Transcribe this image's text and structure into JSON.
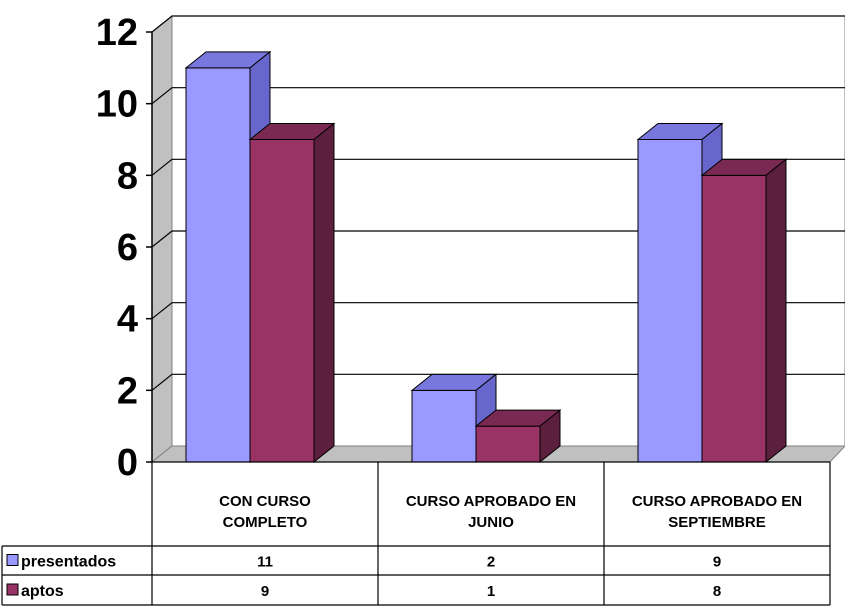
{
  "chart_data": {
    "type": "bar",
    "categories": [
      [
        "CON CURSO",
        "COMPLETO"
      ],
      [
        "CURSO APROBADO EN",
        "JUNIO"
      ],
      [
        "CURSO APROBADO EN",
        "SEPTIEMBRE"
      ]
    ],
    "series": [
      {
        "name": "presentados",
        "values": [
          11,
          2,
          9
        ],
        "color": "#9999ff",
        "side_color": "#6666cc",
        "top_color": "#7777dd"
      },
      {
        "name": "aptos",
        "values": [
          9,
          1,
          8
        ],
        "color": "#993366",
        "side_color": "#5c1f3d",
        "top_color": "#7a2952"
      }
    ],
    "title": "",
    "xlabel": "",
    "ylabel": "",
    "ylim": [
      0,
      12
    ],
    "yticks": [
      "0",
      "2",
      "4",
      "6",
      "8",
      "10",
      "12"
    ],
    "grid": true,
    "data_table": true,
    "legend": "in data table"
  }
}
